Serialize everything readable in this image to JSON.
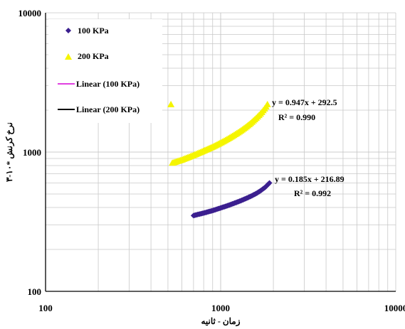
{
  "chart_data": {
    "type": "scatter",
    "x_scale": "log",
    "y_scale": "log",
    "xlim": [
      100,
      10000
    ],
    "ylim": [
      100,
      10000
    ],
    "xlabel": "زمان - ثانیه",
    "ylabel": "نرخ کرنش *۱۰-۳",
    "grid": true,
    "legend_position": "top-left",
    "x_ticks": [
      "100",
      "1000",
      "10000"
    ],
    "y_ticks": [
      "100",
      "1000",
      "10000"
    ],
    "colors": {
      "series_100": "#3b1f8f",
      "series_200": "#f5f500",
      "trend_100": "#e040e0",
      "trend_200": "#000000",
      "grid": "#c8c8c8"
    },
    "series": [
      {
        "name": "100 KPa",
        "marker": "diamond",
        "x_range": [
          700,
          1900
        ],
        "y_range": [
          350,
          600
        ],
        "points": [
          [
            700,
            350
          ],
          [
            800,
            365
          ],
          [
            900,
            380
          ],
          [
            1000,
            397
          ],
          [
            1100,
            413
          ],
          [
            1200,
            430
          ],
          [
            1300,
            447
          ],
          [
            1400,
            465
          ],
          [
            1500,
            484
          ],
          [
            1600,
            505
          ],
          [
            1700,
            530
          ],
          [
            1800,
            560
          ],
          [
            1900,
            600
          ]
        ]
      },
      {
        "name": "200 KPa",
        "marker": "triangle",
        "x_range": [
          520,
          1850
        ],
        "y_range": [
          830,
          2200
        ],
        "points": [
          [
            520,
            830
          ],
          [
            600,
            880
          ],
          [
            700,
            950
          ],
          [
            800,
            1020
          ],
          [
            900,
            1090
          ],
          [
            1000,
            1165
          ],
          [
            1100,
            1245
          ],
          [
            1200,
            1330
          ],
          [
            1300,
            1420
          ],
          [
            1400,
            1520
          ],
          [
            1500,
            1630
          ],
          [
            1600,
            1760
          ],
          [
            1700,
            1900
          ],
          [
            1800,
            2080
          ],
          [
            1850,
            2200
          ]
        ]
      }
    ],
    "trendlines": [
      {
        "name": "Linear (100 KPa)",
        "equation": "y = 0.185x + 216.89",
        "r2": "R² = 0.992",
        "slope": 0.185,
        "intercept": 216.89,
        "x_range": [
          700,
          1900
        ]
      },
      {
        "name": "Linear (200 KPa)",
        "equation": "y = 0.947x + 292.5",
        "r2": "R² = 0.990",
        "slope": 0.947,
        "intercept": 292.5,
        "x_range": [
          520,
          1850
        ]
      }
    ]
  }
}
